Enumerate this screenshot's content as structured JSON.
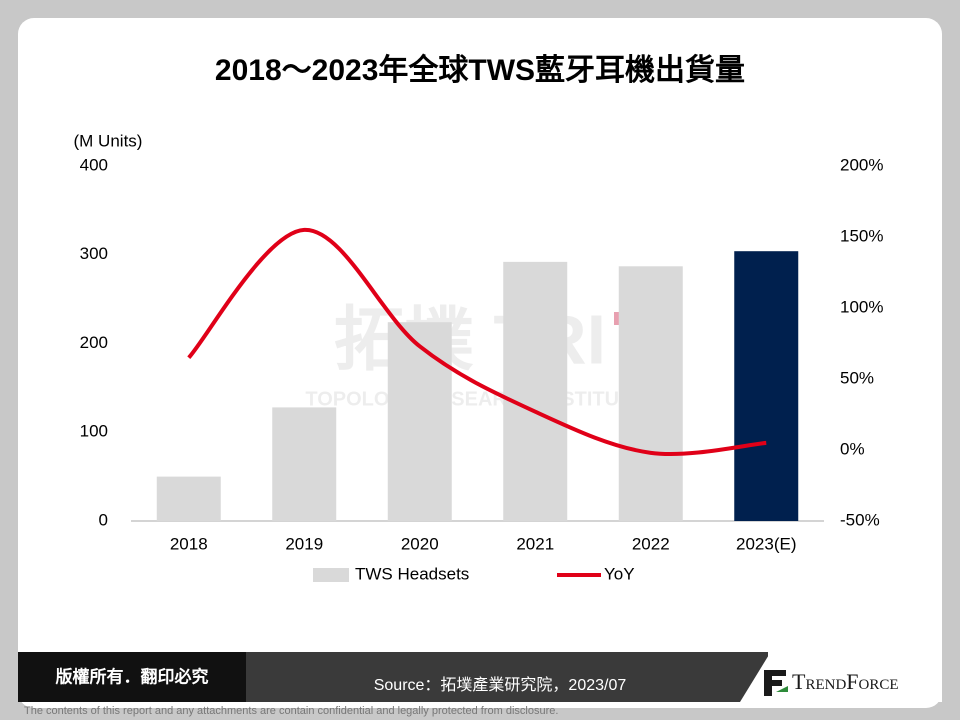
{
  "chart_data": {
    "type": "bar",
    "title": "2018～2023年全球TWS藍牙耳機出貨量",
    "y_label": "(M Units)",
    "categories": [
      "2018",
      "2019",
      "2020",
      "2021",
      "2022",
      "2023(E)"
    ],
    "series": [
      {
        "name": "TWS Headsets",
        "type": "bar",
        "color": "#d9d9d9",
        "colors": [
          "#d9d9d9",
          "#d9d9d9",
          "#d9d9d9",
          "#d9d9d9",
          "#d9d9d9",
          "#00204e"
        ],
        "values": [
          50,
          128,
          224,
          292,
          287,
          304
        ]
      },
      {
        "name": "YoY",
        "type": "line",
        "axis": "y2",
        "color": "#e00018",
        "values": [
          65,
          155,
          73,
          27,
          -2,
          5
        ]
      }
    ],
    "ylim": [
      0,
      400
    ],
    "yticks": [
      0,
      100,
      200,
      300,
      400
    ],
    "y2lim": [
      -50,
      200
    ],
    "y2ticks": [
      {
        "value": -50,
        "label": "-50%"
      },
      {
        "value": 0,
        "label": "0%"
      },
      {
        "value": 50,
        "label": "50%"
      },
      {
        "value": 100,
        "label": "100%"
      },
      {
        "value": 150,
        "label": "150%"
      },
      {
        "value": 200,
        "label": "200%"
      }
    ],
    "legend": "bottom"
  },
  "watermark": {
    "mark": "拓墣 TRI",
    "name": "TOPOLOGY RESEARCH INSTITUTE"
  },
  "footer": {
    "copyright": "版權所有．翻印必究",
    "source": "Source：拓墣產業研究院，2023/07",
    "logo": "TrendForce",
    "disclaimer": "The contents of this report and any attachments are contain confidential and legally protected from disclosure."
  }
}
